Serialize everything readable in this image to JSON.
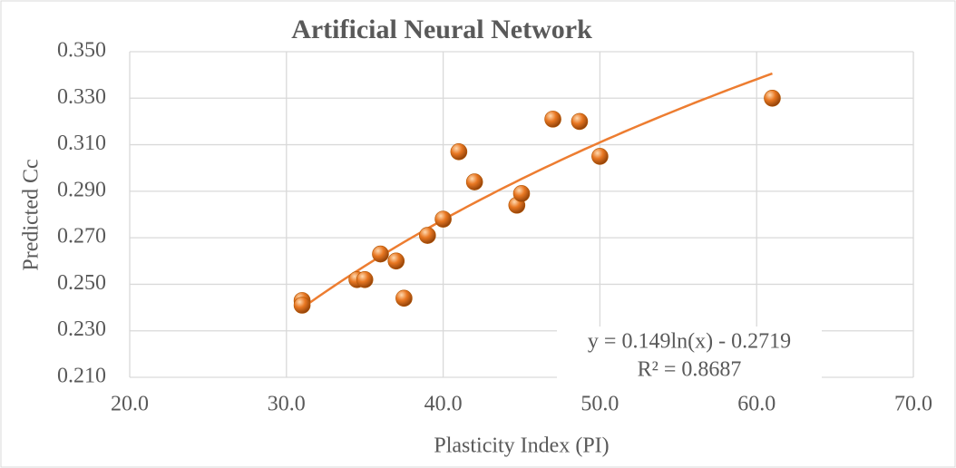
{
  "chart_data": {
    "type": "scatter",
    "title": "Artificial Neural Network",
    "x_label": "Plasticity Index (PI)",
    "y_label": "Predicted Cc",
    "series": [
      {
        "name": "Predicted Cc",
        "color": "#e87722",
        "x": [
          31.0,
          31.0,
          34.5,
          35.0,
          36.0,
          37.0,
          37.5,
          39.0,
          40.0,
          41.0,
          42.0,
          44.7,
          45.0,
          47.0,
          48.7,
          50.0,
          61.0
        ],
        "values": [
          0.243,
          0.241,
          0.252,
          0.252,
          0.263,
          0.26,
          0.244,
          0.271,
          0.278,
          0.307,
          0.294,
          0.284,
          0.289,
          0.321,
          0.32,
          0.305,
          0.33
        ]
      }
    ],
    "trendline": {
      "type": "log",
      "a": 0.149,
      "b": -0.2719,
      "color": "#ed7d31",
      "equation": "y = 0.149ln(x) - 0.2719",
      "r2": "R² = 0.8687"
    },
    "xlim": [
      20,
      70
    ],
    "xticks": [
      {
        "value": 20,
        "label": "20.0"
      },
      {
        "value": 30,
        "label": "30.0"
      },
      {
        "value": 40,
        "label": "40.0"
      },
      {
        "value": 50,
        "label": "50.0"
      },
      {
        "value": 60,
        "label": "60.0"
      },
      {
        "value": 70,
        "label": "70.0"
      }
    ],
    "ylim": [
      0.21,
      0.35
    ],
    "yticks": [
      {
        "value": 0.21,
        "label": "0.210"
      },
      {
        "value": 0.23,
        "label": "0.230"
      },
      {
        "value": 0.25,
        "label": "0.250"
      },
      {
        "value": 0.27,
        "label": "0.270"
      },
      {
        "value": 0.29,
        "label": "0.290"
      },
      {
        "value": 0.31,
        "label": "0.310"
      },
      {
        "value": 0.33,
        "label": "0.330"
      },
      {
        "value": 0.35,
        "label": "0.350"
      }
    ],
    "grid": true
  }
}
